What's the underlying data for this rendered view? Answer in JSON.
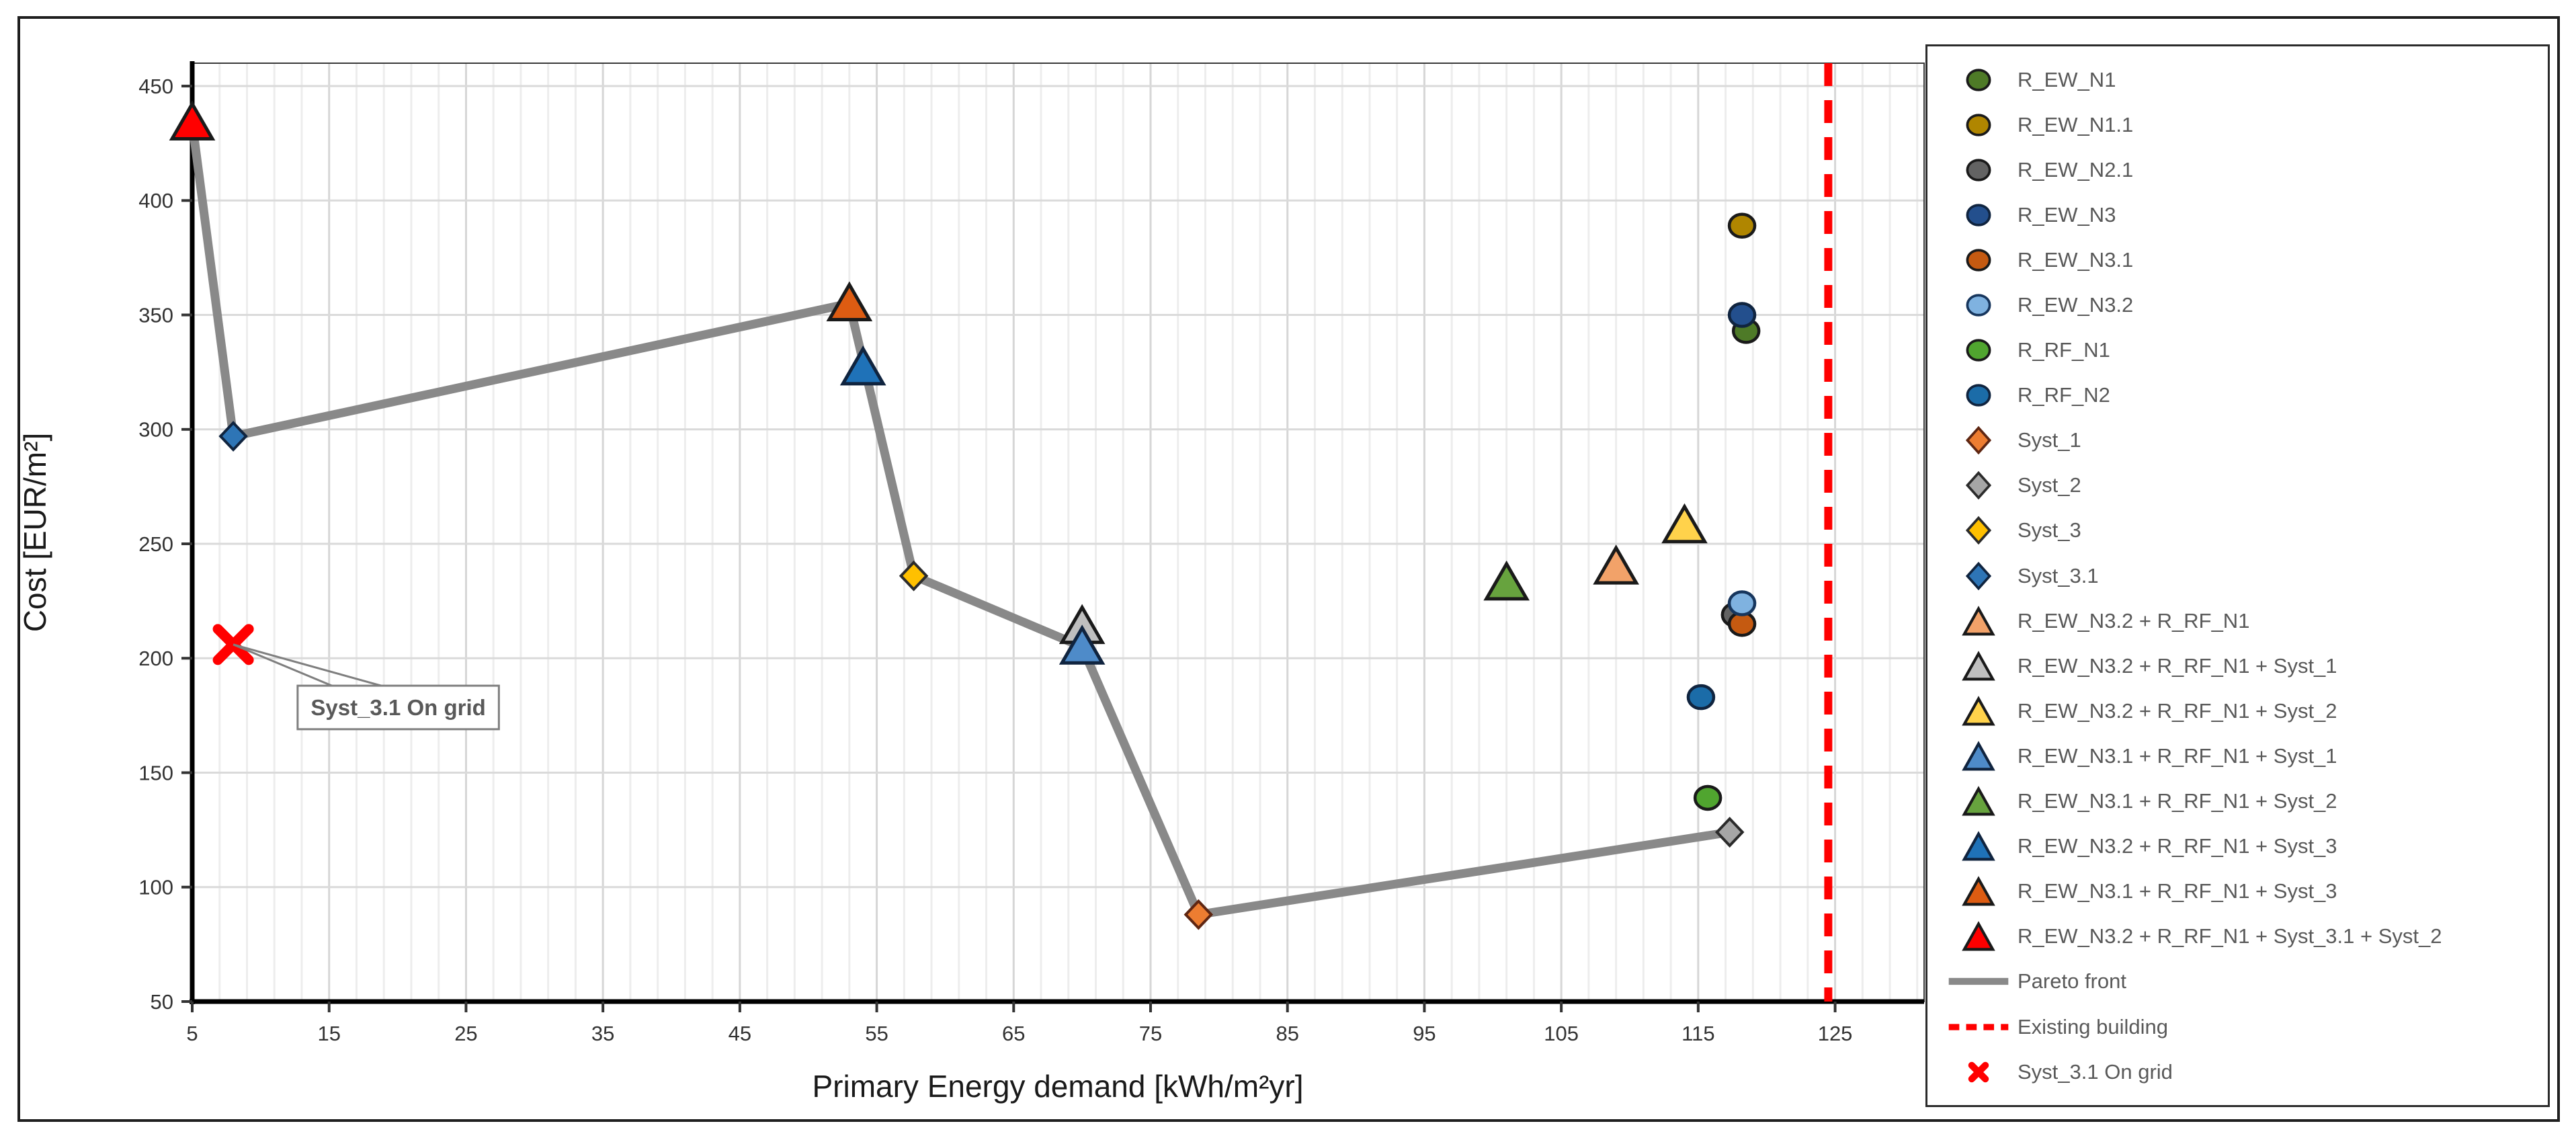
{
  "chart_data": {
    "type": "scatter",
    "title": "",
    "xlabel": "Primary Energy demand [kWh/m²yr]",
    "ylabel": "Cost [EUR/m²]",
    "xlim": [
      5,
      131.5
    ],
    "ylim": [
      50,
      460
    ],
    "xticks": [
      5,
      15,
      25,
      35,
      45,
      55,
      65,
      75,
      85,
      95,
      105,
      115,
      125
    ],
    "yticks": [
      50,
      100,
      150,
      200,
      250,
      300,
      350,
      400,
      450
    ],
    "x_minor_step": 2,
    "grid": true,
    "legend_position": "right",
    "colors": {
      "pareto_line": "#898989",
      "existing_building": "#ff0000",
      "grid_minor": "#ededed",
      "grid_major": "#d6d6d6",
      "axis": "#000000",
      "legend_text": "#595959",
      "tick_text": "#333333"
    },
    "series": [
      {
        "label": "R_EW_N1",
        "marker": "circle",
        "fill": "#4e7a27",
        "stroke": "#1a1a1a",
        "points": [
          [
            118.5,
            343
          ]
        ]
      },
      {
        "label": "R_EW_N1.1",
        "marker": "circle",
        "fill": "#b08600",
        "stroke": "#1a1a1a",
        "points": [
          [
            118.2,
            389
          ]
        ]
      },
      {
        "label": "R_EW_N2.1",
        "marker": "circle",
        "fill": "#636363",
        "stroke": "#1a1a1a",
        "points": [
          [
            117.7,
            219
          ]
        ]
      },
      {
        "label": "R_EW_N3",
        "marker": "circle",
        "fill": "#234f8d",
        "stroke": "#10243f",
        "points": [
          [
            118.2,
            350
          ]
        ]
      },
      {
        "label": "R_EW_N3.1",
        "marker": "circle",
        "fill": "#c55a11",
        "stroke": "#1a1a1a",
        "points": [
          [
            118.2,
            215
          ]
        ]
      },
      {
        "label": "R_EW_N3.2",
        "marker": "circle",
        "fill": "#7fb2e0",
        "stroke": "#17365d",
        "points": [
          [
            118.2,
            224
          ]
        ]
      },
      {
        "label": "R_RF_N1",
        "marker": "circle",
        "fill": "#50a52f",
        "stroke": "#1a1a1a",
        "points": [
          [
            115.7,
            139
          ]
        ]
      },
      {
        "label": "R_RF_N2",
        "marker": "circle",
        "fill": "#1b6ca8",
        "stroke": "#10243f",
        "points": [
          [
            115.2,
            183
          ]
        ]
      },
      {
        "label": "Syst_1",
        "marker": "diamond",
        "fill": "#ed7d31",
        "stroke": "#5e2612",
        "points": [
          [
            78.5,
            88
          ]
        ]
      },
      {
        "label": "Syst_2",
        "marker": "diamond",
        "fill": "#a6a6a6",
        "stroke": "#2b2b2b",
        "points": [
          [
            117.3,
            124
          ]
        ]
      },
      {
        "label": "Syst_3",
        "marker": "diamond",
        "fill": "#ffc000",
        "stroke": "#2b2b2b",
        "points": [
          [
            57.7,
            236
          ]
        ]
      },
      {
        "label": "Syst_3.1",
        "marker": "diamond",
        "fill": "#2e75b6",
        "stroke": "#10243f",
        "points": [
          [
            8,
            297
          ]
        ]
      },
      {
        "label": "R_EW_N3.2 + R_RF_N1",
        "marker": "triangle",
        "fill": "#f2a269",
        "stroke": "#1a1a1a",
        "points": [
          [
            109,
            240
          ]
        ]
      },
      {
        "label": "R_EW_N3.2 + R_RF_N1 + Syst_1",
        "marker": "triangle",
        "fill": "#bfbfbf",
        "stroke": "#1a1a1a",
        "points": [
          [
            70,
            214
          ]
        ]
      },
      {
        "label": "R_EW_N3.2 + R_RF_N1 + Syst_2",
        "marker": "triangle",
        "fill": "#ffd24b",
        "stroke": "#1a1a1a",
        "points": [
          [
            114,
            258
          ]
        ]
      },
      {
        "label": "R_EW_N3.1 + R_RF_N1 + Syst_1",
        "marker": "triangle",
        "fill": "#4e8bc9",
        "stroke": "#10243f",
        "points": [
          [
            70,
            205
          ]
        ]
      },
      {
        "label": "R_EW_N3.1 + R_RF_N1 + Syst_2",
        "marker": "triangle",
        "fill": "#67a33e",
        "stroke": "#1a1a1a",
        "points": [
          [
            101,
            233
          ]
        ]
      },
      {
        "label": "R_EW_N3.2 + R_RF_N1 + Syst_3",
        "marker": "triangle",
        "fill": "#1f72b8",
        "stroke": "#10243f",
        "points": [
          [
            54,
            327
          ]
        ]
      },
      {
        "label": "R_EW_N3.1 + R_RF_N1 + Syst_3",
        "marker": "triangle",
        "fill": "#dd5c12",
        "stroke": "#1a1a1a",
        "points": [
          [
            53,
            355
          ]
        ]
      },
      {
        "label": "R_EW_N3.2 + R_RF_N1 + Syst_3.1 + Syst_2",
        "marker": "triangle",
        "fill": "#ff0000",
        "stroke": "#1a1a1a",
        "points": [
          [
            5,
            434
          ]
        ]
      },
      {
        "label": "Pareto front",
        "marker": "line",
        "color": "#898989",
        "points": [
          [
            5,
            434
          ],
          [
            8,
            297
          ],
          [
            53,
            355
          ],
          [
            57.7,
            236
          ],
          [
            70,
            205
          ],
          [
            78.5,
            88
          ],
          [
            117.3,
            124
          ]
        ]
      },
      {
        "label": "Existing building",
        "marker": "dashline",
        "color": "#ff0000",
        "x": 124.5
      },
      {
        "label": "Syst_3.1 On grid",
        "marker": "x",
        "color": "#ff0000",
        "points": [
          [
            8,
            206
          ]
        ]
      }
    ],
    "annotation": {
      "label": "Syst_3.1 On grid",
      "target": [
        8,
        206
      ],
      "box": {
        "x1": 12.7,
        "x2": 27.4,
        "y1": 169,
        "y2": 188
      },
      "leader_x": [
        15.2,
        18.8
      ]
    }
  }
}
